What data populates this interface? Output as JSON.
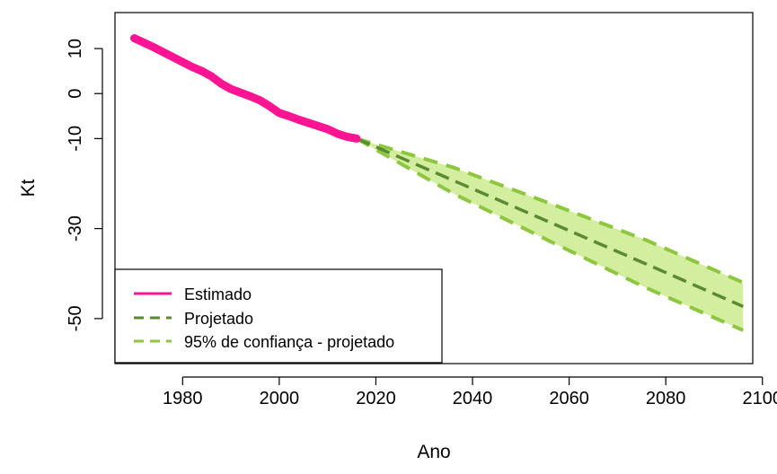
{
  "chart_data": {
    "type": "line",
    "title": "",
    "xlabel": "Ano",
    "ylabel": "Kt",
    "xlim": [
      1966,
      2098
    ],
    "ylim": [
      -60,
      18
    ],
    "x_ticks": [
      1980,
      2000,
      2020,
      2040,
      2060,
      2080,
      2100
    ],
    "y_ticks": [
      10,
      0,
      -10,
      -30,
      -50
    ],
    "y_tick_labels": [
      "10",
      "0",
      "-10",
      "-30",
      "-50"
    ],
    "grid": false,
    "legend_position": "bottom-left",
    "series": [
      {
        "name": "Estimado",
        "style": "solid",
        "color": "#ff1493",
        "x": [
          1970,
          1972,
          1974,
          1976,
          1978,
          1980,
          1982,
          1984,
          1986,
          1988,
          1990,
          1992,
          1994,
          1996,
          1998,
          2000,
          2002,
          2004,
          2006,
          2008,
          2010,
          2012,
          2014,
          2016
        ],
        "y": [
          12.3,
          11.3,
          10.3,
          9.2,
          8.1,
          7.0,
          5.9,
          5.0,
          3.8,
          2.2,
          1.0,
          0.2,
          -0.6,
          -1.5,
          -2.8,
          -4.3,
          -5.0,
          -5.8,
          -6.5,
          -7.2,
          -7.9,
          -8.9,
          -9.6,
          -10.0
        ]
      },
      {
        "name": "Projetado",
        "style": "dashed",
        "color": "#5a8a32",
        "x": [
          2016,
          2036,
          2056,
          2076,
          2096
        ],
        "y": [
          -10.0,
          -19.3,
          -28.6,
          -37.9,
          -47.3
        ]
      },
      {
        "name": "95% de confiança - projetado",
        "style": "dashed",
        "color": "#8dc63f",
        "band_fill": "#d4ee9f",
        "x": [
          2016,
          2036,
          2056,
          2076,
          2096
        ],
        "upper": [
          -10.0,
          -16.4,
          -24.4,
          -32.6,
          -42.0
        ],
        "lower": [
          -10.0,
          -22.2,
          -32.8,
          -43.2,
          -52.6
        ]
      }
    ]
  }
}
